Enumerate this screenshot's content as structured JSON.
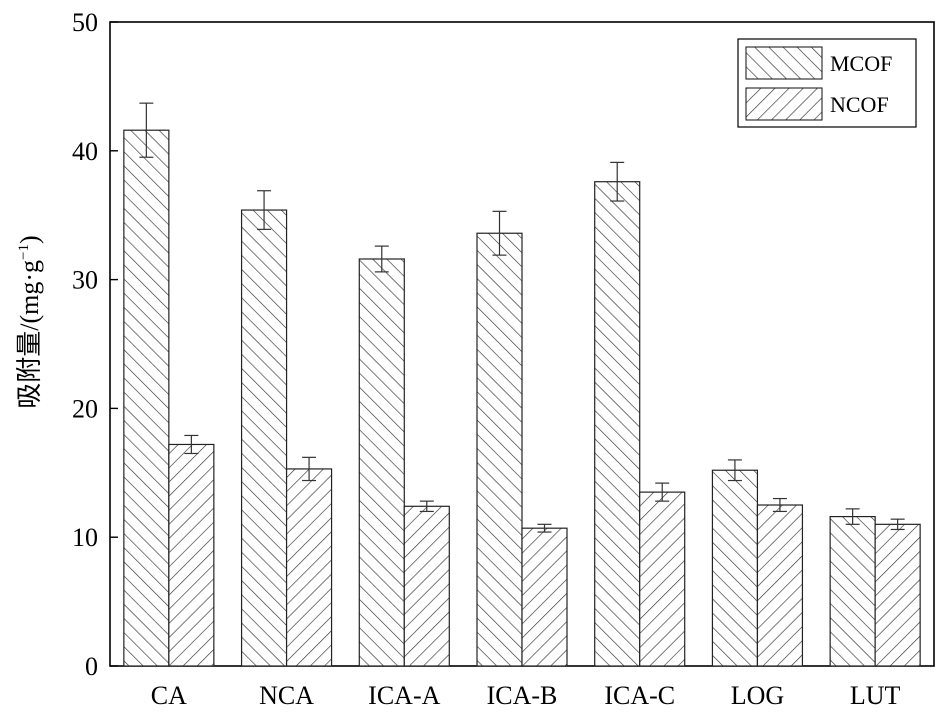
{
  "chart_data": {
    "type": "bar",
    "title": "",
    "xlabel": "",
    "ylabel": "吸附量/(mg·g⁻¹)",
    "ylabel_main": "吸附量/(mg·g",
    "ylabel_sup": "−1",
    "ylabel_end": ")",
    "ylim": [
      0,
      50
    ],
    "yticks": [
      0,
      10,
      20,
      30,
      40,
      50
    ],
    "categories": [
      "CA",
      "NCA",
      "ICA-A",
      "ICA-B",
      "ICA-C",
      "LOG",
      "LUT"
    ],
    "series": [
      {
        "name": "MCOF",
        "pattern": "forward-hatch",
        "values": [
          41.6,
          35.4,
          31.6,
          33.6,
          37.6,
          15.2,
          11.6
        ],
        "errors": [
          2.1,
          1.5,
          1.0,
          1.7,
          1.5,
          0.8,
          0.6
        ]
      },
      {
        "name": "NCOF",
        "pattern": "back-hatch",
        "values": [
          17.2,
          15.3,
          12.4,
          10.7,
          13.5,
          12.5,
          11.0
        ],
        "errors": [
          0.7,
          0.9,
          0.4,
          0.3,
          0.7,
          0.5,
          0.4
        ]
      }
    ],
    "legend_position": "top-right",
    "grid": false
  }
}
